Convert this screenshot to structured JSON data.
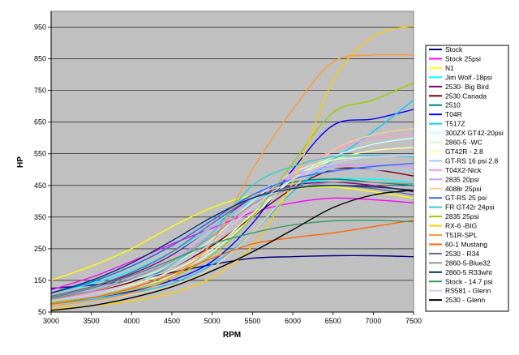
{
  "chart_data": {
    "type": "line",
    "title": "",
    "xlabel": "RPM",
    "ylabel": "HP",
    "xlim": [
      3000,
      7500
    ],
    "ylim": [
      50,
      1000
    ],
    "x_ticks": [
      3000,
      3500,
      4000,
      4500,
      5000,
      5500,
      6000,
      6500,
      7000,
      7500
    ],
    "y_ticks": [
      50,
      150,
      250,
      350,
      450,
      550,
      650,
      750,
      850,
      950
    ],
    "grid": "horizontal",
    "plot_background": "#c0c0c0",
    "legend_position": "right",
    "series": [
      {
        "name": "Stock",
        "color": "#000080",
        "points": [
          [
            3000,
            125
          ],
          [
            3500,
            135
          ],
          [
            4000,
            150
          ],
          [
            4500,
            175
          ],
          [
            5000,
            200
          ],
          [
            5500,
            220
          ],
          [
            6000,
            225
          ],
          [
            6500,
            228
          ],
          [
            7000,
            228
          ],
          [
            7500,
            225
          ]
        ]
      },
      {
        "name": "Stock 25psi",
        "color": "#ff00ff",
        "points": [
          [
            3000,
            120
          ],
          [
            3500,
            160
          ],
          [
            4000,
            210
          ],
          [
            4500,
            265
          ],
          [
            5000,
            315
          ],
          [
            5500,
            365
          ],
          [
            6000,
            395
          ],
          [
            6500,
            410
          ],
          [
            7000,
            405
          ],
          [
            7500,
            395
          ]
        ]
      },
      {
        "name": "N1",
        "color": "#ffff00",
        "points": [
          [
            3000,
            150
          ],
          [
            3500,
            195
          ],
          [
            4000,
            250
          ],
          [
            4500,
            320
          ],
          [
            5000,
            380
          ],
          [
            5500,
            420
          ],
          [
            6000,
            440
          ],
          [
            6500,
            445
          ],
          [
            7000,
            430
          ],
          [
            7500,
            410
          ]
        ]
      },
      {
        "name": "Jim Wolf -18psi",
        "color": "#00ffff",
        "points": [
          [
            3000,
            110
          ],
          [
            3500,
            140
          ],
          [
            4000,
            180
          ],
          [
            4500,
            240
          ],
          [
            5000,
            320
          ],
          [
            5500,
            400
          ],
          [
            6000,
            450
          ],
          [
            6500,
            470
          ],
          [
            7000,
            470
          ],
          [
            7500,
            460
          ]
        ]
      },
      {
        "name": "2530- Big Bird",
        "color": "#800080",
        "points": [
          [
            3000,
            100
          ],
          [
            3500,
            130
          ],
          [
            4000,
            170
          ],
          [
            4500,
            230
          ],
          [
            5000,
            320
          ],
          [
            5500,
            410
          ],
          [
            6000,
            450
          ],
          [
            6500,
            460
          ],
          [
            7000,
            450
          ],
          [
            7500,
            430
          ]
        ]
      },
      {
        "name": "2530 Canada",
        "color": "#800000",
        "points": [
          [
            3000,
            95
          ],
          [
            3500,
            115
          ],
          [
            4000,
            145
          ],
          [
            4500,
            190
          ],
          [
            5000,
            260
          ],
          [
            5500,
            350
          ],
          [
            6000,
            440
          ],
          [
            6500,
            500
          ],
          [
            7000,
            500
          ],
          [
            7500,
            480
          ]
        ]
      },
      {
        "name": "2510",
        "color": "#008080",
        "points": [
          [
            3000,
            110
          ],
          [
            3500,
            145
          ],
          [
            4000,
            195
          ],
          [
            4500,
            260
          ],
          [
            5000,
            340
          ],
          [
            5500,
            420
          ],
          [
            6000,
            460
          ],
          [
            6500,
            470
          ],
          [
            7000,
            460
          ],
          [
            7500,
            450
          ]
        ]
      },
      {
        "name": "T04R",
        "color": "#0000ff",
        "points": [
          [
            3000,
            80
          ],
          [
            3500,
            95
          ],
          [
            4000,
            115
          ],
          [
            4500,
            150
          ],
          [
            5000,
            210
          ],
          [
            5500,
            330
          ],
          [
            6000,
            500
          ],
          [
            6500,
            640
          ],
          [
            7000,
            660
          ],
          [
            7500,
            690
          ]
        ]
      },
      {
        "name": "T517Z",
        "color": "#00ccff",
        "points": [
          [
            3000,
            75
          ],
          [
            3500,
            90
          ],
          [
            4000,
            110
          ],
          [
            4500,
            140
          ],
          [
            5000,
            200
          ],
          [
            5500,
            300
          ],
          [
            6000,
            430
          ],
          [
            6500,
            530
          ],
          [
            7000,
            620
          ],
          [
            7500,
            720
          ]
        ]
      },
      {
        "name": "300ZX GT42-20psi",
        "color": "#ccffff",
        "points": [
          [
            3000,
            80
          ],
          [
            3500,
            95
          ],
          [
            4000,
            120
          ],
          [
            4500,
            165
          ],
          [
            5000,
            240
          ],
          [
            5500,
            350
          ],
          [
            6000,
            470
          ],
          [
            6500,
            540
          ],
          [
            7000,
            580
          ],
          [
            7500,
            600
          ]
        ]
      },
      {
        "name": "2860-5 -WC",
        "color": "#ccffcc",
        "points": [
          [
            3000,
            90
          ],
          [
            3500,
            115
          ],
          [
            4000,
            150
          ],
          [
            4500,
            200
          ],
          [
            5000,
            280
          ],
          [
            5500,
            400
          ],
          [
            6000,
            490
          ],
          [
            6500,
            530
          ],
          [
            7000,
            540
          ],
          [
            7500,
            545
          ]
        ]
      },
      {
        "name": "GT42R - 2.8",
        "color": "#ffff99",
        "points": [
          [
            3000,
            85
          ],
          [
            3500,
            105
          ],
          [
            4000,
            135
          ],
          [
            4500,
            180
          ],
          [
            5000,
            250
          ],
          [
            5500,
            360
          ],
          [
            6000,
            470
          ],
          [
            6500,
            530
          ],
          [
            7000,
            560
          ],
          [
            7500,
            570
          ]
        ]
      },
      {
        "name": "GT-RS 16 psi 2.8",
        "color": "#99ccff",
        "points": [
          [
            3000,
            100
          ],
          [
            3500,
            130
          ],
          [
            4000,
            175
          ],
          [
            4500,
            235
          ],
          [
            5000,
            320
          ],
          [
            5500,
            420
          ],
          [
            6000,
            480
          ],
          [
            6500,
            500
          ],
          [
            7000,
            500
          ],
          [
            7500,
            495
          ]
        ]
      },
      {
        "name": "T04X2-Nick",
        "color": "#ff99cc",
        "points": [
          [
            3000,
            90
          ],
          [
            3500,
            110
          ],
          [
            4000,
            140
          ],
          [
            4500,
            190
          ],
          [
            5000,
            270
          ],
          [
            5500,
            390
          ],
          [
            6000,
            490
          ],
          [
            6500,
            560
          ],
          [
            7000,
            600
          ],
          [
            7500,
            610
          ]
        ]
      },
      {
        "name": "2835 20psi",
        "color": "#cc99ff",
        "points": [
          [
            3000,
            95
          ],
          [
            3500,
            120
          ],
          [
            4000,
            160
          ],
          [
            4500,
            215
          ],
          [
            5000,
            300
          ],
          [
            5500,
            410
          ],
          [
            6000,
            480
          ],
          [
            6500,
            510
          ],
          [
            7000,
            515
          ],
          [
            7500,
            510
          ]
        ]
      },
      {
        "name": "4088r 25psi",
        "color": "#ffcc99",
        "points": [
          [
            3000,
            70
          ],
          [
            3500,
            85
          ],
          [
            4000,
            105
          ],
          [
            4500,
            135
          ],
          [
            5000,
            190
          ],
          [
            5500,
            300
          ],
          [
            6000,
            440
          ],
          [
            6500,
            560
          ],
          [
            7000,
            610
          ],
          [
            7500,
            630
          ]
        ]
      },
      {
        "name": "GT-RS 25 psi",
        "color": "#3366ff",
        "points": [
          [
            3000,
            110
          ],
          [
            3500,
            145
          ],
          [
            4000,
            195
          ],
          [
            4500,
            260
          ],
          [
            5000,
            340
          ],
          [
            5500,
            420
          ],
          [
            6000,
            470
          ],
          [
            6500,
            495
          ],
          [
            7000,
            510
          ],
          [
            7500,
            520
          ]
        ]
      },
      {
        "name": "FR GT42r 24psi",
        "color": "#33cccc",
        "points": [
          [
            3000,
            85
          ],
          [
            3500,
            105
          ],
          [
            4000,
            140
          ],
          [
            4500,
            200
          ],
          [
            5000,
            300
          ],
          [
            5500,
            450
          ],
          [
            6000,
            510
          ],
          [
            6500,
            540
          ],
          [
            7000,
            545
          ],
          [
            7500,
            540
          ]
        ]
      },
      {
        "name": "2835 25psi",
        "color": "#99cc00",
        "points": [
          [
            3000,
            80
          ],
          [
            3500,
            95
          ],
          [
            4000,
            120
          ],
          [
            4500,
            160
          ],
          [
            5000,
            230
          ],
          [
            5500,
            350
          ],
          [
            6000,
            520
          ],
          [
            6500,
            680
          ],
          [
            7000,
            720
          ],
          [
            7500,
            775
          ]
        ]
      },
      {
        "name": "RX-6 -BIG",
        "color": "#ffcc00",
        "points": [
          [
            3000,
            60
          ],
          [
            3500,
            70
          ],
          [
            4000,
            85
          ],
          [
            4500,
            110
          ],
          [
            5000,
            160
          ],
          [
            5500,
            260
          ],
          [
            6000,
            460
          ],
          [
            6500,
            780
          ],
          [
            7000,
            920
          ],
          [
            7500,
            955
          ]
        ]
      },
      {
        "name": "T51R-SPL",
        "color": "#ff9933",
        "points": [
          [
            3000,
            70
          ],
          [
            3500,
            85
          ],
          [
            4000,
            110
          ],
          [
            4500,
            160
          ],
          [
            5000,
            270
          ],
          [
            5500,
            500
          ],
          [
            6000,
            690
          ],
          [
            6500,
            840
          ],
          [
            7000,
            862
          ],
          [
            7500,
            862
          ]
        ]
      },
      {
        "name": "60-1 Mustang",
        "color": "#ff6600",
        "points": [
          [
            3000,
            75
          ],
          [
            3500,
            95
          ],
          [
            4000,
            125
          ],
          [
            4500,
            170
          ],
          [
            5000,
            220
          ],
          [
            5500,
            265
          ],
          [
            6000,
            285
          ],
          [
            6500,
            300
          ],
          [
            7000,
            320
          ],
          [
            7500,
            340
          ]
        ]
      },
      {
        "name": "2530 - R34",
        "color": "#666699",
        "points": [
          [
            3000,
            100
          ],
          [
            3500,
            130
          ],
          [
            4000,
            175
          ],
          [
            4500,
            240
          ],
          [
            5000,
            330
          ],
          [
            5500,
            410
          ],
          [
            6000,
            445
          ],
          [
            6500,
            450
          ],
          [
            7000,
            440
          ],
          [
            7500,
            420
          ]
        ]
      },
      {
        "name": "2860-5-Blue32",
        "color": "#969696",
        "points": [
          [
            3000,
            90
          ],
          [
            3500,
            115
          ],
          [
            4000,
            155
          ],
          [
            4500,
            210
          ],
          [
            5000,
            290
          ],
          [
            5500,
            390
          ],
          [
            6000,
            440
          ],
          [
            6500,
            460
          ],
          [
            7000,
            460
          ],
          [
            7500,
            455
          ]
        ]
      },
      {
        "name": "2860-5 R33wht",
        "color": "#003366",
        "points": [
          [
            3000,
            110
          ],
          [
            3500,
            150
          ],
          [
            4000,
            205
          ],
          [
            4500,
            275
          ],
          [
            5000,
            350
          ],
          [
            5500,
            410
          ],
          [
            6000,
            440
          ],
          [
            6500,
            450
          ],
          [
            7000,
            445
          ],
          [
            7500,
            435
          ]
        ]
      },
      {
        "name": "Stock - 14.7 psi",
        "color": "#339966",
        "points": [
          [
            3000,
            95
          ],
          [
            3500,
            125
          ],
          [
            4000,
            165
          ],
          [
            4500,
            215
          ],
          [
            5000,
            265
          ],
          [
            5500,
            300
          ],
          [
            6000,
            325
          ],
          [
            6500,
            338
          ],
          [
            7000,
            340
          ],
          [
            7500,
            335
          ]
        ]
      },
      {
        "name": "RS581 - Glenn",
        "color": "#ccccff",
        "points": [
          [
            3000,
            85
          ],
          [
            3500,
            105
          ],
          [
            4000,
            140
          ],
          [
            4500,
            190
          ],
          [
            5000,
            270
          ],
          [
            5500,
            380
          ],
          [
            6000,
            470
          ],
          [
            6500,
            520
          ],
          [
            7000,
            540
          ],
          [
            7500,
            545
          ]
        ]
      },
      {
        "name": "2530 - Glenn",
        "color": "#000000",
        "points": [
          [
            3000,
            55
          ],
          [
            3500,
            70
          ],
          [
            4000,
            95
          ],
          [
            4500,
            130
          ],
          [
            5000,
            180
          ],
          [
            5500,
            240
          ],
          [
            6000,
            310
          ],
          [
            6500,
            380
          ],
          [
            7000,
            420
          ],
          [
            7500,
            435
          ]
        ]
      }
    ]
  }
}
